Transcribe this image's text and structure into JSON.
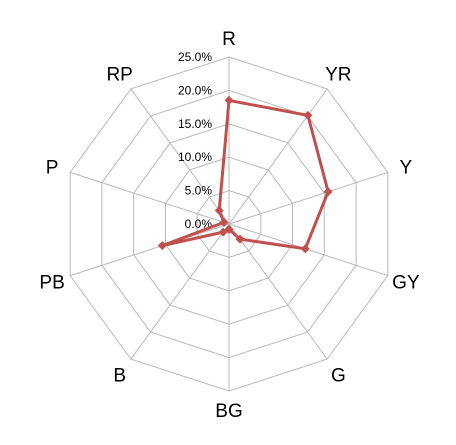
{
  "chart_data": {
    "type": "radar",
    "categories": [
      "R",
      "YR",
      "Y",
      "GY",
      "G",
      "BG",
      "B",
      "PB",
      "P",
      "RP"
    ],
    "series": [
      {
        "values": [
          18.5,
          20.1,
          15.6,
          12.0,
          2.8,
          0.8,
          1.5,
          10.5,
          0.8,
          2.5
        ]
      }
    ],
    "rlim": [
      0,
      25
    ],
    "ticks": [
      0,
      5,
      10,
      15,
      20,
      25
    ],
    "tick_labels": [
      "0.0%",
      "5.0%",
      "10.0%",
      "15.0%",
      "20.0%",
      "25.0%"
    ],
    "grid": true,
    "legend": "none",
    "colors": {
      "series": "#c0504d",
      "grid": "#b8b8b8"
    }
  }
}
